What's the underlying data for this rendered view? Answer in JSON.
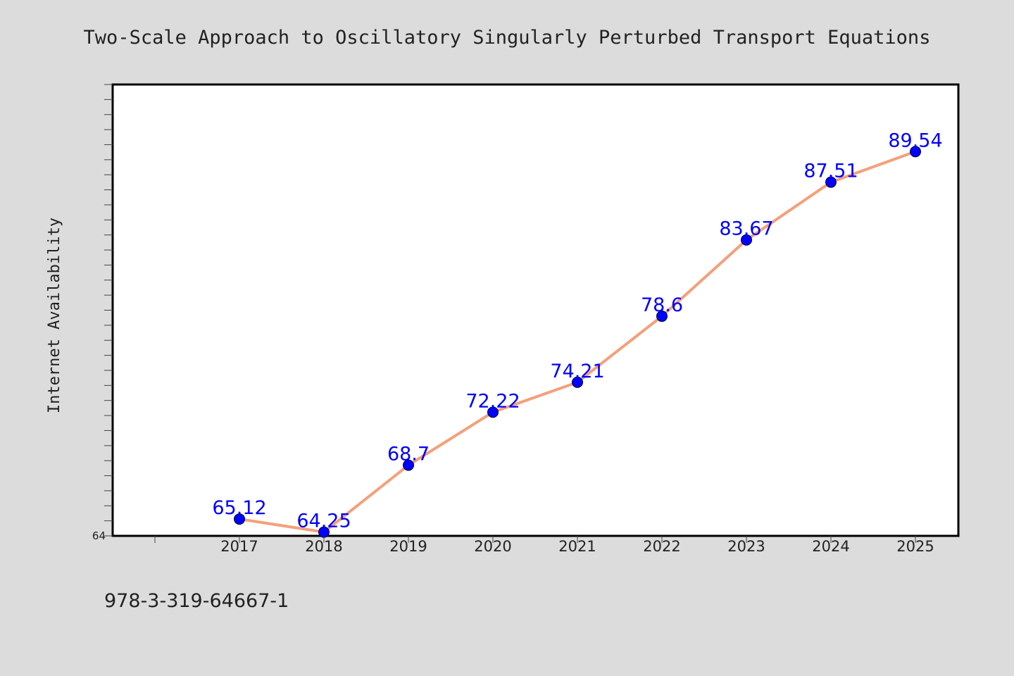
{
  "chart_data": {
    "type": "line",
    "title": "Two-Scale Approach to Oscillatory Singularly Perturbed Transport Equations",
    "ylabel": "Internet Availability",
    "xlabel": "",
    "categories": [
      "2017",
      "2018",
      "2019",
      "2020",
      "2021",
      "2022",
      "2023",
      "2024",
      "2025"
    ],
    "series": [
      {
        "values": [
          65.12,
          64.25,
          68.7,
          72.22,
          74.21,
          78.6,
          83.67,
          87.51,
          89.54
        ],
        "labels": [
          "65.12",
          "64.25",
          "68.7",
          "72.22",
          "74.21",
          "78.6",
          "83.67",
          "87.51",
          "89.54"
        ],
        "line_color": "#f4a07a",
        "marker_color": "#0000ff"
      }
    ],
    "ylim": [
      64,
      94
    ],
    "y_tick_labels": [
      "64"
    ],
    "grid": false,
    "legend": "none"
  },
  "footer": {
    "isbn": "978-3-319-64667-1"
  },
  "colors": {
    "background": "#dcdcdc",
    "plot_background": "#ffffff",
    "label_color": "#0000ff"
  }
}
